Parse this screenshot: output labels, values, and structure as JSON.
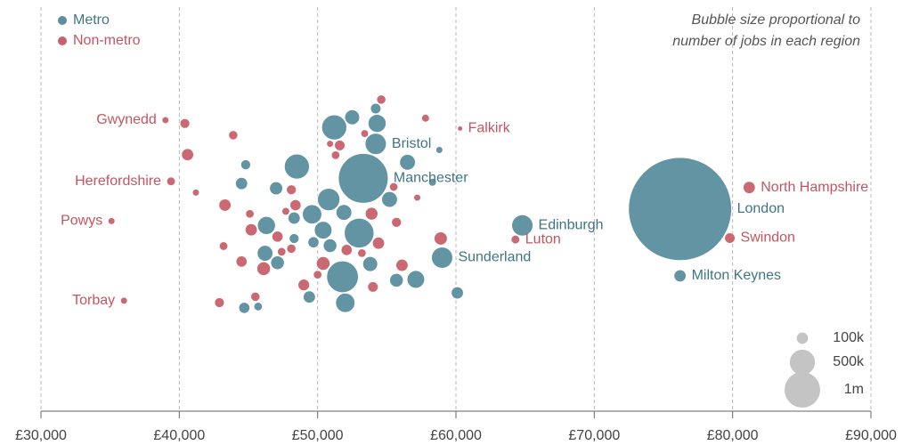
{
  "chart_data": {
    "type": "bubble",
    "xlim": [
      30000,
      90000
    ],
    "xticks": [
      {
        "value": 30000,
        "label": "£30,000"
      },
      {
        "value": 40000,
        "label": "£40,000"
      },
      {
        "value": 50000,
        "label": "£50,000"
      },
      {
        "value": 60000,
        "label": "£60,000"
      },
      {
        "value": 70000,
        "label": "£70,000"
      },
      {
        "value": 80000,
        "label": "£80,000"
      },
      {
        "value": 90000,
        "label": "£90,000"
      }
    ],
    "grid": true,
    "legend": "top-left",
    "size_note": [
      "Bubble size proportional to",
      "number of jobs in each region"
    ],
    "size_legend": [
      {
        "value": 100000,
        "label": "100k"
      },
      {
        "value": 500000,
        "label": "500k"
      },
      {
        "value": 1000000,
        "label": "1m"
      }
    ],
    "size_legend_color": "#c4c4c4",
    "series": [
      {
        "name": "Metro",
        "color": "#5b8e9e",
        "label_color": "#3f7585",
        "x": [
          54200,
          59000,
          64800,
          76200,
          53300,
          76200,
          47100,
          49600,
          48300,
          50400,
          51200,
          52000,
          53000,
          55200,
          55700,
          58300,
          50800,
          48500,
          44700,
          46200,
          51800,
          57100,
          52500,
          48300,
          49400,
          56500,
          53800,
          54300,
          60100,
          58800,
          44500,
          46300,
          47000,
          51900,
          49700,
          54200,
          50900,
          45700,
          44800
        ],
        "sizes": [
          360000,
          360000,
          360000,
          8400000,
          1960000,
          120000,
          150000,
          300000,
          120000,
          250000,
          500000,
          300000,
          700000,
          200000,
          150000,
          50000,
          400000,
          500000,
          100000,
          200000,
          800000,
          250000,
          180000,
          80000,
          120000,
          200000,
          180000,
          260000,
          120000,
          40000,
          120000,
          260000,
          140000,
          200000,
          100000,
          90000,
          150000,
          60000,
          80000
        ],
        "labels": [
          "Bristol",
          "Sunderland",
          "Edinburgh",
          "London",
          "Manchester",
          "Milton Keynes",
          null,
          null,
          null,
          null,
          null,
          null,
          null,
          null,
          null,
          null,
          null,
          null,
          null,
          null,
          null,
          null,
          null,
          null,
          null,
          null,
          null,
          null,
          null,
          null,
          null,
          null,
          null,
          null,
          null,
          null,
          null,
          null,
          null
        ]
      },
      {
        "name": "Non-metro",
        "color": "#c8616b",
        "label_color": "#c45560",
        "x": [
          39000,
          60300,
          81200,
          39400,
          36000,
          35100,
          64300,
          79800,
          45200,
          47100,
          48100,
          49000,
          50400,
          51300,
          44500,
          43200,
          42900,
          43300,
          45500,
          45100,
          47700,
          48400,
          50900,
          51600,
          53200,
          54000,
          54400,
          54600,
          55700,
          56100,
          57800,
          58900,
          40400,
          41200,
          40600,
          46100,
          47400,
          50000,
          52100,
          53400,
          55500,
          57200,
          43900,
          53900,
          48100
        ],
        "sizes": [
          40000,
          22000,
          120000,
          62000,
          40000,
          40000,
          62000,
          90000,
          120000,
          100000,
          80000,
          110000,
          150000,
          60000,
          100000,
          60000,
          80000,
          120000,
          70000,
          60000,
          50000,
          100000,
          40000,
          90000,
          60000,
          90000,
          120000,
          70000,
          80000,
          120000,
          50000,
          140000,
          80000,
          40000,
          120000,
          150000,
          60000,
          60000,
          100000,
          50000,
          60000,
          40000,
          70000,
          130000,
          70000
        ],
        "labels": [
          "Gwynedd",
          "Falkirk",
          "North Hampshire",
          "Herefordshire",
          "Torbay",
          "Powys",
          "Luton",
          "Swindon",
          null,
          null,
          null,
          null,
          null,
          null,
          null,
          null,
          null,
          null,
          null,
          null,
          null,
          null,
          null,
          null,
          null,
          null,
          null,
          null,
          null,
          null,
          null,
          null,
          null,
          null,
          null,
          null,
          null,
          null,
          null,
          null,
          null,
          null,
          null,
          null,
          null
        ]
      }
    ]
  }
}
